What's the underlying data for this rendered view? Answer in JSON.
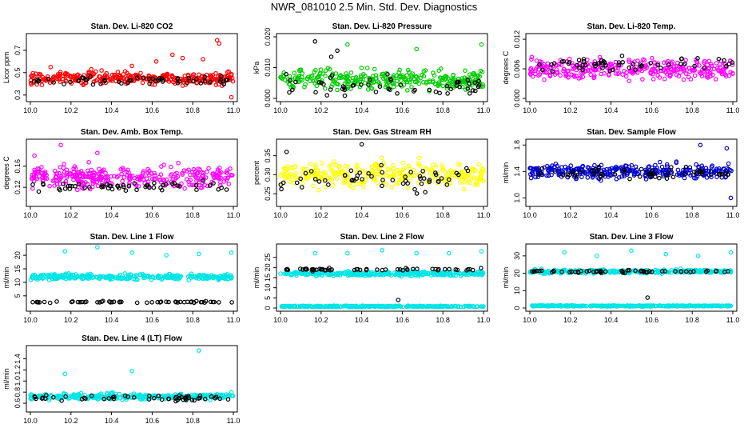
{
  "page": {
    "title": "NWR_081010  2.5 Min. Std. Dev. Diagnostics"
  },
  "chart_data": [
    {
      "type": "scatter",
      "title": "Stan. Dev. Li-820 CO2",
      "ylabel": "Licor ppm",
      "xlim": [
        10.0,
        11.0
      ],
      "ylim": [
        0.27,
        0.82
      ],
      "xticks": [
        "10.0",
        "10.2",
        "10.4",
        "10.6",
        "10.8",
        "11.0"
      ],
      "yticks": [
        "0.3",
        "0.5",
        "0.7"
      ],
      "series": [
        {
          "color": "#ff0000",
          "center": 0.45,
          "spread": 0.05,
          "x": [
            10.1,
            10.3,
            10.5,
            10.62,
            10.7,
            10.75,
            10.85,
            10.92,
            10.93,
            10.99
          ],
          "y": [
            0.55,
            0.53,
            0.56,
            0.6,
            0.66,
            0.63,
            0.62,
            0.79,
            0.76,
            0.28
          ]
        },
        {
          "color": "#000000",
          "center": 0.43,
          "spread": 0.04,
          "x": [],
          "y": []
        }
      ]
    },
    {
      "type": "scatter",
      "title": "Stan. Dev. Li-820 Pressure",
      "ylabel": "kPa",
      "xlim": [
        10.0,
        11.0
      ],
      "ylim": [
        0.0,
        0.02
      ],
      "xticks": [
        "10.0",
        "10.2",
        "10.4",
        "10.6",
        "10.8",
        "11.0"
      ],
      "yticks": [
        "0.000",
        "0.010",
        "0.020"
      ],
      "series": [
        {
          "color": "#00cc00",
          "center": 0.006,
          "spread": 0.003,
          "x": [
            10.33,
            10.67,
            10.99
          ],
          "y": [
            0.0175,
            0.016,
            0.0175
          ]
        },
        {
          "color": "#000000",
          "center": 0.004,
          "spread": 0.003,
          "x": [
            10.17,
            10.25,
            10.28
          ],
          "y": [
            0.0185,
            0.0135,
            0.0155
          ]
        }
      ]
    },
    {
      "type": "scatter",
      "title": "Stan. Dev. Li-820 Temp.",
      "ylabel": "degrees C",
      "xlim": [
        10.0,
        11.0
      ],
      "ylim": [
        0.0,
        0.0125
      ],
      "xticks": [
        "10.0",
        "10.2",
        "10.4",
        "10.6",
        "10.8",
        "11.0"
      ],
      "yticks": [
        "0.000",
        "0.006",
        "0.012"
      ],
      "series": [
        {
          "color": "#ff00ff",
          "center": 0.006,
          "spread": 0.002,
          "x": [],
          "y": []
        },
        {
          "color": "#000000",
          "center": 0.007,
          "spread": 0.0015,
          "x": [],
          "y": []
        }
      ]
    },
    {
      "type": "scatter",
      "title": "Stan. Dev. Amb. Box Temp.",
      "ylabel": "degrees C",
      "xlim": [
        10.0,
        11.0
      ],
      "ylim": [
        0.09,
        0.205
      ],
      "xticks": [
        "10.0",
        "10.2",
        "10.4",
        "10.6",
        "10.8",
        "11.0"
      ],
      "yticks": [
        "0.12",
        "0.16"
      ],
      "series": [
        {
          "color": "#ff00ff",
          "center": 0.14,
          "spread": 0.018,
          "x": [
            10.15,
            10.02,
            10.33
          ],
          "y": [
            0.2,
            0.18,
            0.185
          ]
        },
        {
          "color": "#000000",
          "center": 0.12,
          "spread": 0.01,
          "x": [],
          "y": []
        }
      ]
    },
    {
      "type": "scatter",
      "title": "Stan. Dev. Gas Stream RH",
      "ylabel": "percent",
      "xlim": [
        10.0,
        11.0
      ],
      "ylim": [
        0.225,
        0.385
      ],
      "xticks": [
        "10.0",
        "10.2",
        "10.4",
        "10.6",
        "10.8",
        "11.0"
      ],
      "yticks": [
        "0.25",
        "0.30",
        "0.35"
      ],
      "series": [
        {
          "color": "#ffff00",
          "center": 0.3,
          "spread": 0.03,
          "x": [],
          "y": []
        },
        {
          "color": "#000000",
          "center": 0.29,
          "spread": 0.03,
          "x": [
            10.4,
            10.03
          ],
          "y": [
            0.38,
            0.36
          ]
        }
      ]
    },
    {
      "type": "scatter",
      "title": "Stan. Dev. Sample Flow",
      "ylabel": "ml/min",
      "xlim": [
        10.0,
        11.0
      ],
      "ylim": [
        0.92,
        1.84
      ],
      "xticks": [
        "10.0",
        "10.2",
        "10.4",
        "10.6",
        "10.8",
        "11.0"
      ],
      "yticks": [
        "1.0",
        "1.4",
        "1.8"
      ],
      "series": [
        {
          "color": "#0000cc",
          "center": 1.4,
          "spread": 0.1,
          "x": [
            10.84,
            10.97,
            10.99
          ],
          "y": [
            1.8,
            1.75,
            1.0
          ]
        },
        {
          "color": "#000000",
          "center": 1.38,
          "spread": 0.08,
          "x": [],
          "y": []
        }
      ]
    },
    {
      "type": "scatter",
      "title": "Stan. Dev. Line 1 Flow",
      "ylabel": "ml/min",
      "xlim": [
        10.0,
        11.0
      ],
      "ylim": [
        0.5,
        23.0
      ],
      "xticks": [
        "10.0",
        "10.2",
        "10.4",
        "10.6",
        "10.8",
        "11.0"
      ],
      "yticks": [
        "5",
        "10",
        "15",
        "20"
      ],
      "series": [
        {
          "color": "#00e5e5",
          "center": 12.0,
          "spread": 1.0,
          "x": [
            10.17,
            10.33,
            10.5,
            10.67,
            10.83,
            10.99
          ],
          "y": [
            21.5,
            23.0,
            21.0,
            20.0,
            20.5,
            21.0
          ]
        },
        {
          "color": "#000000",
          "center": 2.7,
          "spread": 0.25,
          "x": [],
          "y": []
        }
      ]
    },
    {
      "type": "scatter",
      "title": "Stan. Dev. Line 2 Flow",
      "ylabel": "ml/min",
      "xlim": [
        10.0,
        11.0
      ],
      "ylim": [
        0.0,
        30.0
      ],
      "xticks": [
        "10.0",
        "10.2",
        "10.4",
        "10.6",
        "10.8",
        "11.0"
      ],
      "yticks": [
        "0",
        "5",
        "10",
        "15",
        "20",
        "25"
      ],
      "series": [
        {
          "color": "#00e5e5",
          "center": 17.0,
          "spread": 1.0,
          "x": [
            10.17,
            10.33,
            10.5,
            10.67,
            10.83,
            10.99
          ],
          "y": [
            27.0,
            27.0,
            28.5,
            27.0,
            27.0,
            28.0
          ]
        },
        {
          "color": "#00e5e5",
          "center": 0.8,
          "spread": 0.3,
          "x": [],
          "y": []
        },
        {
          "color": "#000000",
          "center": 19.0,
          "spread": 0.6,
          "x": [
            10.58
          ],
          "y": [
            4.0
          ]
        }
      ]
    },
    {
      "type": "scatter",
      "title": "Stan. Dev. Line 3 Flow",
      "ylabel": "ml/min",
      "xlim": [
        10.0,
        11.0
      ],
      "ylim": [
        0.0,
        35.0
      ],
      "xticks": [
        "10.0",
        "10.2",
        "10.4",
        "10.6",
        "10.8",
        "11.0"
      ],
      "yticks": [
        "0",
        "10",
        "20",
        "30"
      ],
      "series": [
        {
          "color": "#00e5e5",
          "center": 21.0,
          "spread": 1.0,
          "x": [
            10.17,
            10.33,
            10.5,
            10.67,
            10.83,
            10.99
          ],
          "y": [
            32.0,
            30.0,
            33.0,
            31.0,
            30.0,
            32.0
          ]
        },
        {
          "color": "#00e5e5",
          "center": 1.2,
          "spread": 0.3,
          "x": [],
          "y": []
        },
        {
          "color": "#000000",
          "center": 21.0,
          "spread": 0.6,
          "x": [
            10.58
          ],
          "y": [
            6.0
          ]
        }
      ]
    },
    {
      "type": "scatter",
      "title": "Stan. Dev. Line 4 (LT) Flow",
      "ylabel": "ml/min",
      "xlim": [
        10.0,
        11.0
      ],
      "ylim": [
        0.5,
        1.58
      ],
      "xticks": [
        "10.0",
        "10.2",
        "10.4",
        "10.6",
        "10.8",
        "11.0"
      ],
      "yticks": [
        "0.6",
        "0.8",
        "1.0",
        "1.2",
        "1.4"
      ],
      "series": [
        {
          "color": "#00e5e5",
          "center": 0.72,
          "spread": 0.05,
          "x": [
            10.17,
            10.5,
            10.83,
            10.99
          ],
          "y": [
            1.13,
            1.18,
            1.55,
            0.8
          ]
        },
        {
          "color": "#000000",
          "center": 0.7,
          "spread": 0.05,
          "x": [],
          "y": []
        }
      ]
    }
  ]
}
